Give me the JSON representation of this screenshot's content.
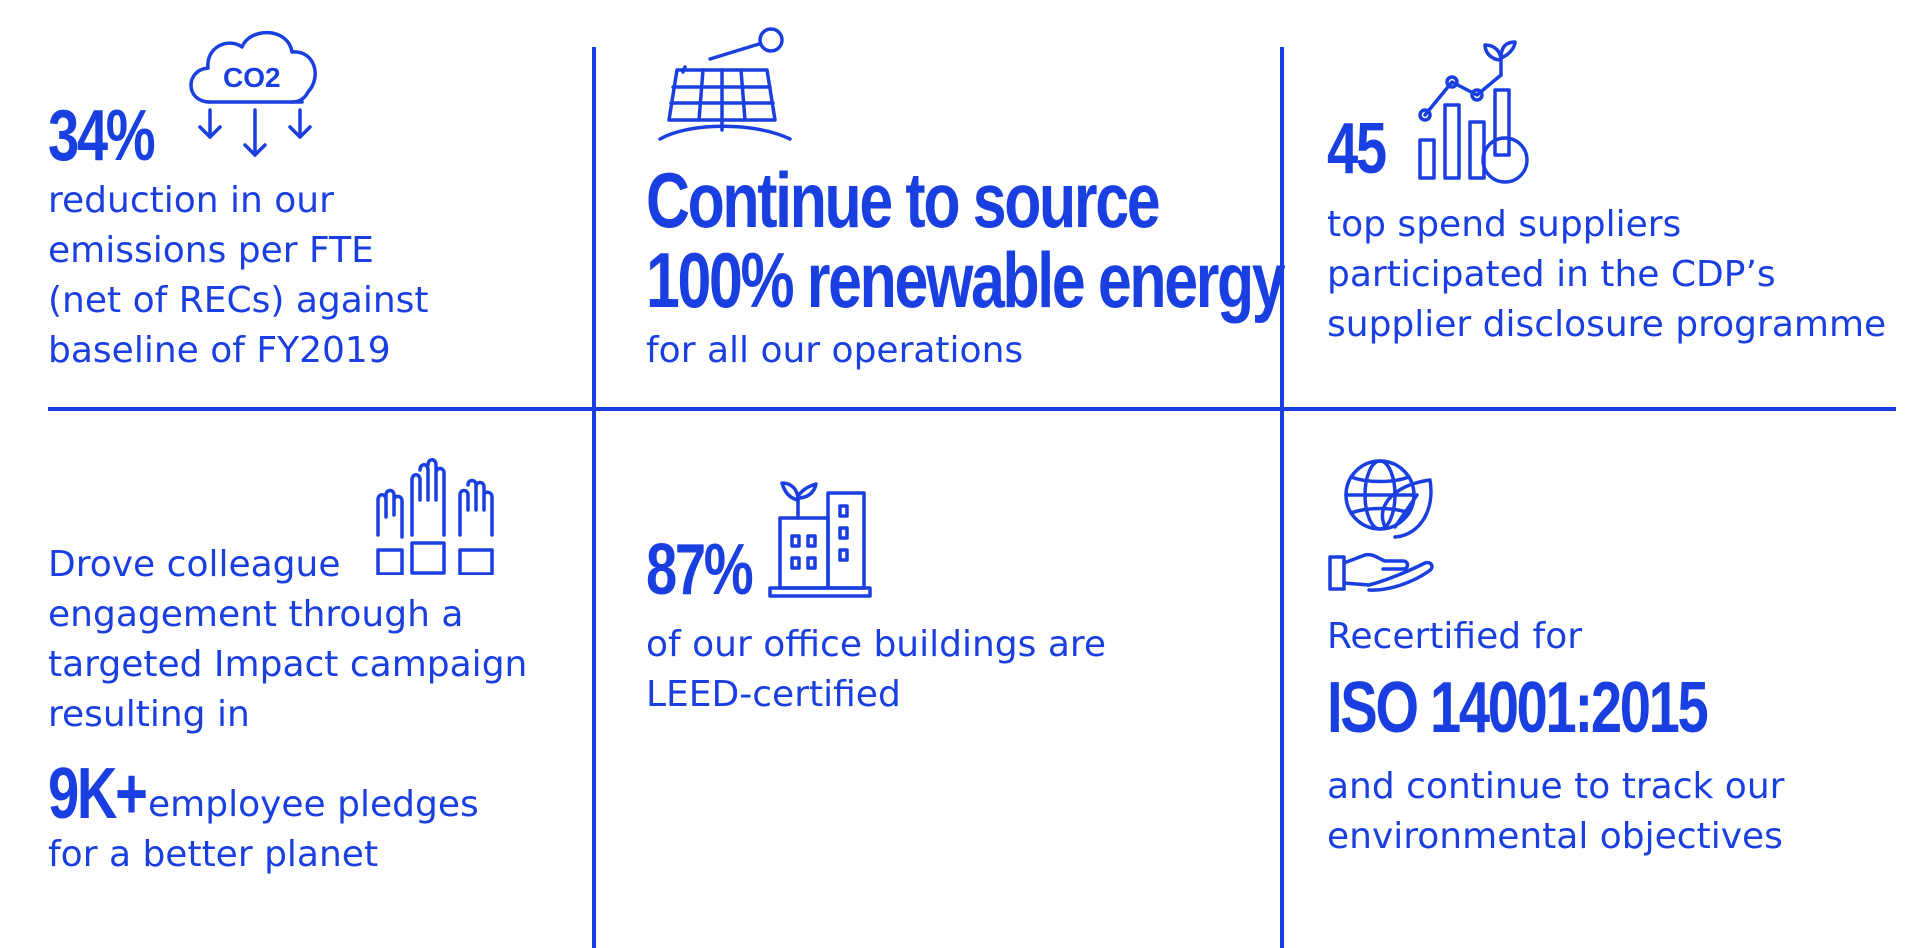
{
  "cells": {
    "emissions": {
      "stat": "34%",
      "lines": [
        "reduction in our",
        "emissions per FTE",
        "(net of RECs) against",
        "baseline of FY2019"
      ],
      "icon": "co2-cloud-icon",
      "icon_label": "CO2"
    },
    "renewable": {
      "headline": [
        "Continue to source",
        "100% renewable energy"
      ],
      "text": "for all our operations",
      "icon": "solar-panel-icon"
    },
    "suppliers": {
      "stat": "45",
      "lines": [
        "top spend suppliers",
        "participated in the CDP’s",
        "supplier disclosure programme"
      ],
      "icon": "growth-chart-icon"
    },
    "engagement": {
      "lines": [
        "Drove colleague",
        "engagement through a",
        "targeted Impact campaign",
        "resulting in"
      ],
      "stat": "9K+",
      "stat_text": "employee pledges",
      "last_line": "for a better planet",
      "icon": "raised-hands-icon"
    },
    "buildings": {
      "stat": "87%",
      "lines": [
        "of our office buildings are",
        "LEED-certified"
      ],
      "icon": "green-building-icon"
    },
    "iso": {
      "intro": "Recertified for",
      "headline": "ISO 14001:2015",
      "lines": [
        "and continue to track our",
        "environmental objectives"
      ],
      "icon": "globe-leaf-hand-icon"
    }
  },
  "colors": {
    "accent": "#1a3fe0",
    "background": "#ffffff"
  }
}
